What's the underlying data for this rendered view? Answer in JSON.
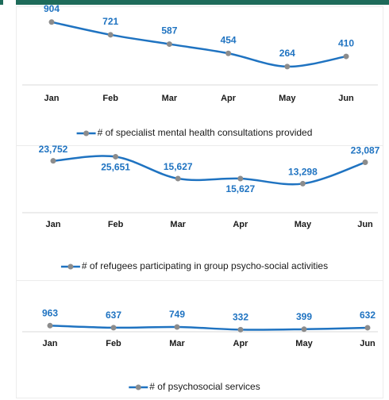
{
  "chart_data": [
    {
      "type": "line",
      "categories": [
        "Jan",
        "Feb",
        "Mar",
        "Apr",
        "May",
        "Jun"
      ],
      "series": [
        {
          "name": "# of specialist mental health consultations provided",
          "color": "#1f73c1",
          "values": [
            904,
            721,
            587,
            454,
            264,
            410
          ]
        }
      ],
      "ylim": [
        0,
        1130
      ],
      "marker_color": "#8c8c8c",
      "legend": "bottom"
    },
    {
      "type": "line",
      "categories": [
        "Jan",
        "Feb",
        "Mar",
        "Apr",
        "May",
        "Jun"
      ],
      "series": [
        {
          "name": "# of refugees participating in group psycho-social activities",
          "color": "#1f73c1",
          "values": [
            23752,
            25651,
            15627,
            15627,
            13298,
            23087
          ],
          "value_labels": [
            "23,752",
            "25,651",
            "15,627",
            "15,627",
            "13,298",
            "23,087"
          ]
        }
      ],
      "ylim": [
        0,
        30000
      ],
      "marker_color": "#8c8c8c",
      "legend": "bottom"
    },
    {
      "type": "line",
      "categories": [
        "Jan",
        "Feb",
        "Mar",
        "Apr",
        "May",
        "Jun"
      ],
      "series": [
        {
          "name": "# of psychosocial services",
          "color": "#1f73c1",
          "values": [
            963,
            637,
            749,
            332,
            399,
            632
          ]
        }
      ],
      "ylim": [
        0,
        5000
      ],
      "marker_color": "#8c8c8c",
      "legend": "bottom"
    }
  ]
}
